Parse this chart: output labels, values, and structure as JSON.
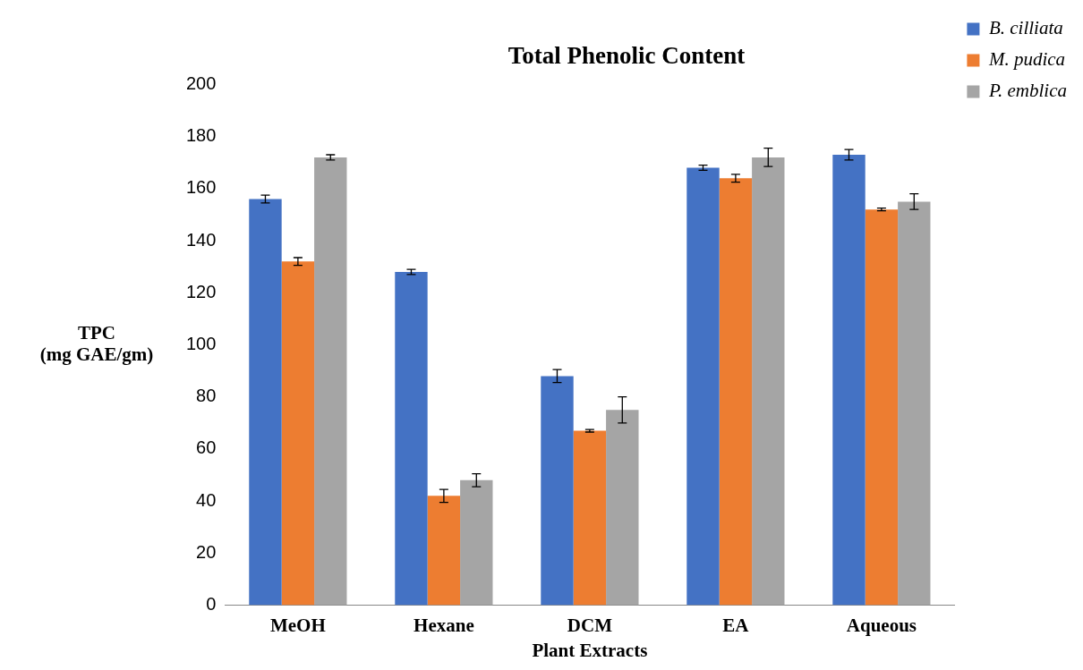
{
  "chart_data": {
    "type": "bar",
    "title": "Total Phenolic Content",
    "xlabel": "Plant Extracts",
    "ylabel": "TPC\n(mg GAE/gm)",
    "categories": [
      "MeOH",
      "Hexane",
      "DCM",
      "EA",
      "Aqueous"
    ],
    "series": [
      {
        "name": "B. cilliata",
        "color": "#4472c4",
        "values": [
          156,
          128,
          88,
          168,
          173
        ],
        "errors": [
          1.5,
          1,
          2.5,
          1,
          2
        ]
      },
      {
        "name": "M. pudica",
        "color": "#ed7d31",
        "values": [
          132,
          42,
          67,
          164,
          152
        ],
        "errors": [
          1.5,
          2.5,
          0.5,
          1.5,
          0.5
        ]
      },
      {
        "name": "P. emblica",
        "color": "#a5a5a5",
        "values": [
          172,
          48,
          75,
          172,
          155
        ],
        "errors": [
          1,
          2.5,
          5,
          3.5,
          3
        ]
      }
    ],
    "ylim": [
      0,
      200
    ],
    "yticks": [
      0,
      20,
      40,
      60,
      80,
      100,
      120,
      140,
      160,
      180,
      200
    ],
    "grid": false,
    "legend": "top right"
  }
}
